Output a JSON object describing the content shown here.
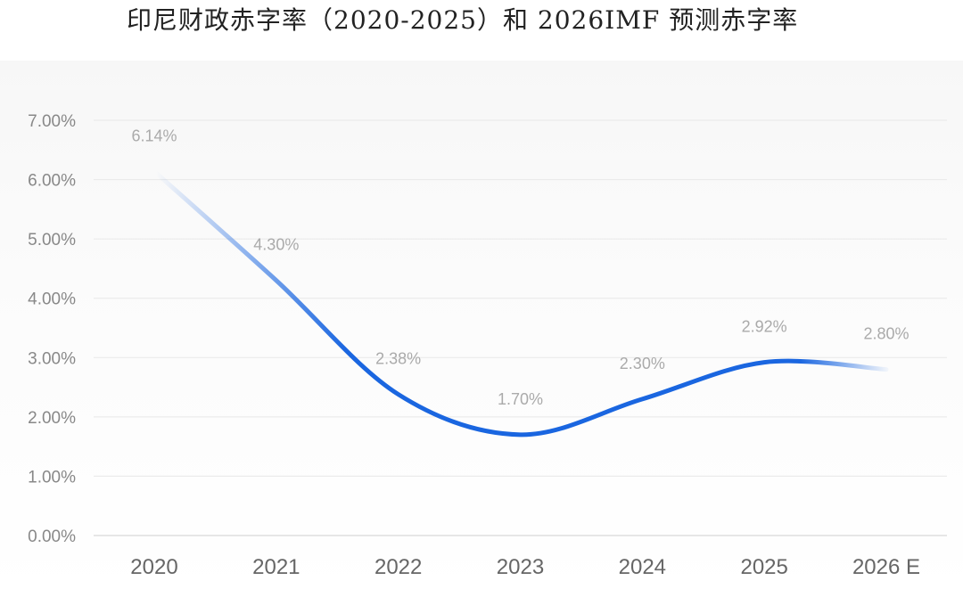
{
  "title": "印尼财政赤字率（2020-2025）和 2026IMF 预测赤字率",
  "colors": {
    "line": "#1a66e0",
    "grid": "#e8e8e8",
    "label": "#aaaaaa"
  },
  "chart_data": {
    "type": "line",
    "title": "印尼财政赤字率（2020-2025）和 2026IMF 预测赤字率",
    "categories": [
      "2020",
      "2021",
      "2022",
      "2023",
      "2024",
      "2025",
      "2026 E"
    ],
    "series": [
      {
        "values": [
          6.14,
          4.3,
          2.38,
          1.7,
          2.3,
          2.92,
          2.8
        ]
      }
    ],
    "data_labels": [
      "6.14%",
      "4.30%",
      "2.38%",
      "1.70%",
      "2.30%",
      "2.92%",
      "2.80%"
    ],
    "yticks": [
      "0.00%",
      "1.00%",
      "2.00%",
      "3.00%",
      "4.00%",
      "5.00%",
      "6.00%",
      "7.00%"
    ],
    "ylim": [
      0,
      7
    ],
    "xlabel": "",
    "ylabel": "",
    "grid": true,
    "smooth": true
  }
}
